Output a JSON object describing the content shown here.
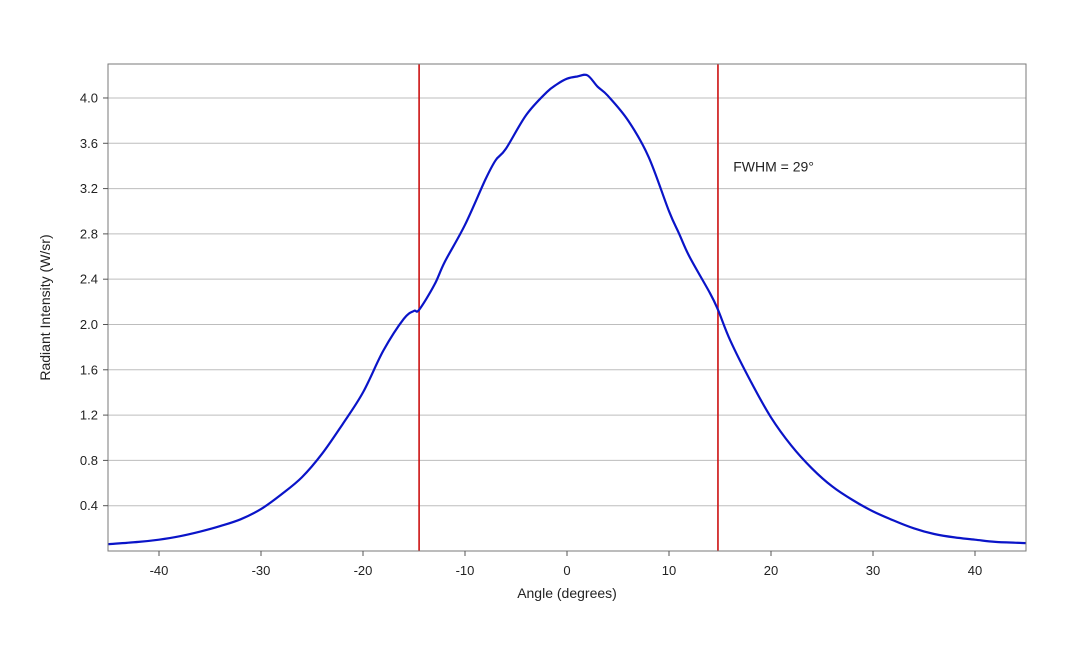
{
  "chart_data": {
    "type": "line",
    "title": "",
    "xlabel": "Angle (degrees)",
    "ylabel": "Radiant Intensity (W/sr)",
    "xlim": [
      -45,
      45
    ],
    "ylim": [
      0,
      4.3
    ],
    "grid": "horizontal",
    "x_ticks": [
      -40,
      -30,
      -20,
      -10,
      0,
      10,
      20,
      30,
      40
    ],
    "y_ticks": [
      0.4,
      0.8,
      1.2,
      1.6,
      2.0,
      2.4,
      2.8,
      3.2,
      3.6,
      4.0
    ],
    "x_tick_labels": [
      "-40",
      "-30",
      "-20",
      "-10",
      "0",
      "10",
      "20",
      "30",
      "40"
    ],
    "y_tick_labels": [
      "0.4",
      "0.8",
      "1.2",
      "1.6",
      "2.0",
      "2.4",
      "2.8",
      "3.2",
      "3.6",
      "4.0"
    ],
    "series": [
      {
        "color": "#0a14c8",
        "x": [
          -45,
          -42,
          -40,
          -38,
          -36,
          -34,
          -32,
          -30,
          -28,
          -26,
          -24,
          -22,
          -20,
          -18,
          -16,
          -15,
          -14.5,
          -13,
          -12,
          -10,
          -8,
          -7,
          -6,
          -4,
          -2,
          -1,
          0,
          1,
          2,
          3,
          4,
          6,
          8,
          10,
          11,
          12,
          14,
          14.8,
          16,
          18,
          20,
          22,
          24,
          26,
          28,
          30,
          32,
          34,
          36,
          38,
          40,
          42,
          45
        ],
        "y": [
          0.06,
          0.08,
          0.1,
          0.13,
          0.17,
          0.22,
          0.28,
          0.37,
          0.5,
          0.65,
          0.86,
          1.12,
          1.4,
          1.77,
          2.05,
          2.12,
          2.13,
          2.35,
          2.55,
          2.88,
          3.28,
          3.45,
          3.55,
          3.85,
          4.05,
          4.12,
          4.17,
          4.19,
          4.2,
          4.1,
          4.02,
          3.8,
          3.48,
          3.0,
          2.8,
          2.6,
          2.28,
          2.13,
          1.86,
          1.5,
          1.18,
          0.93,
          0.73,
          0.57,
          0.45,
          0.35,
          0.27,
          0.2,
          0.15,
          0.12,
          0.1,
          0.08,
          0.07
        ]
      }
    ],
    "markers": [
      {
        "x": -14.5,
        "color": "#cc1111"
      },
      {
        "x": 14.8,
        "color": "#cc1111"
      }
    ],
    "annotations": [
      {
        "text": "FWHM = 29°",
        "x": 16.3,
        "y": 3.35
      }
    ]
  }
}
